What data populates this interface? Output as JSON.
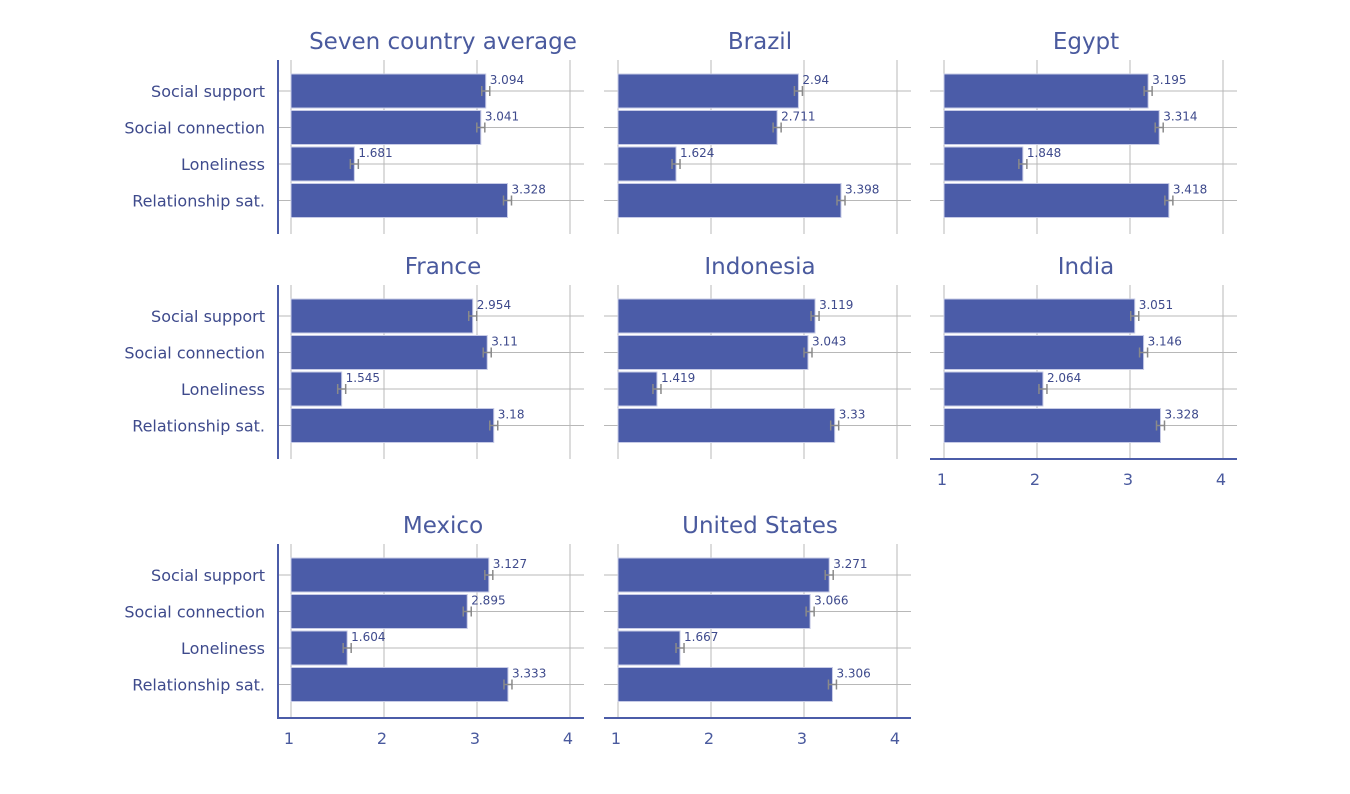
{
  "chart_data": {
    "type": "bar",
    "orientation": "horizontal",
    "categories": [
      "Social support",
      "Social connection",
      "Loneliness",
      "Relationship sat."
    ],
    "xlim": [
      1,
      4
    ],
    "xticks": [
      "1",
      "2",
      "3",
      "4"
    ],
    "grid": true,
    "colors": {
      "bar": "#4b5ca8",
      "error_bar": "#8a8a8a",
      "text": "#3e4a8c"
    },
    "panels": [
      {
        "title": "Seven country average",
        "values": [
          3.094,
          3.041,
          1.681,
          3.328
        ],
        "labels": [
          "3.094",
          "3.041",
          "1.681",
          "3.328"
        ]
      },
      {
        "title": "Brazil",
        "values": [
          2.94,
          2.711,
          1.624,
          3.398
        ],
        "labels": [
          "2.94",
          "2.711",
          "1.624",
          "3.398"
        ]
      },
      {
        "title": "Egypt",
        "values": [
          3.195,
          3.314,
          1.848,
          3.418
        ],
        "labels": [
          "3.195",
          "3.314",
          "1.848",
          "3.418"
        ]
      },
      {
        "title": "France",
        "values": [
          2.954,
          3.11,
          1.545,
          3.18
        ],
        "labels": [
          "2.954",
          "3.11",
          "1.545",
          "3.18"
        ]
      },
      {
        "title": "Indonesia",
        "values": [
          3.119,
          3.043,
          1.419,
          3.33
        ],
        "labels": [
          "3.119",
          "3.043",
          "1.419",
          "3.33"
        ]
      },
      {
        "title": "India",
        "values": [
          3.051,
          3.146,
          2.064,
          3.328
        ],
        "labels": [
          "3.051",
          "3.146",
          "2.064",
          "3.328"
        ]
      },
      {
        "title": "Mexico",
        "values": [
          3.127,
          2.895,
          1.604,
          3.333
        ],
        "labels": [
          "3.127",
          "2.895",
          "1.604",
          "3.333"
        ]
      },
      {
        "title": "United States",
        "values": [
          3.271,
          3.066,
          1.667,
          3.306
        ],
        "labels": [
          "3.271",
          "3.066",
          "1.667",
          "3.306"
        ]
      }
    ]
  }
}
